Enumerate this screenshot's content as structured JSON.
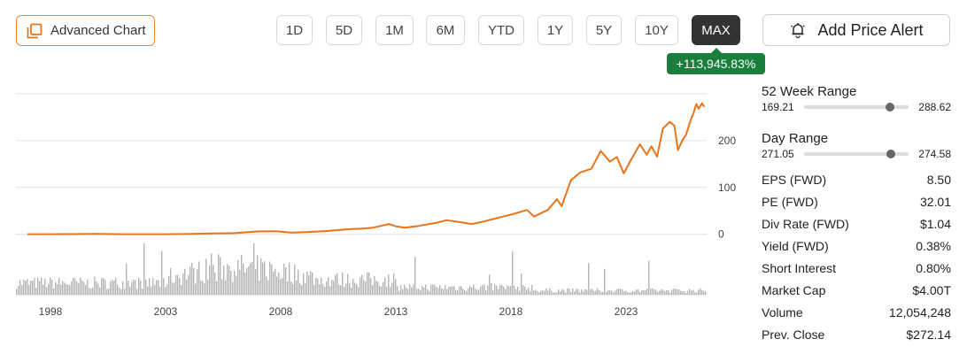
{
  "toolbar": {
    "advanced_chart_label": "Advanced Chart",
    "ranges": [
      "1D",
      "5D",
      "1M",
      "6M",
      "YTD",
      "1Y",
      "5Y",
      "10Y",
      "MAX"
    ],
    "active_range": "MAX",
    "add_price_alert_label": "Add Price Alert"
  },
  "change_badge": "+113,945.83%",
  "colors": {
    "accent_orange": "#e8751a",
    "badge_green": "#1a7f3c",
    "active_range_bg": "#333333",
    "volume_gray": "#b5b5b5",
    "grid": "#e0e0e0"
  },
  "stats": {
    "week52": {
      "title": "52 Week Range",
      "low": "169.21",
      "high": "288.62",
      "position": 0.82
    },
    "day": {
      "title": "Day Range",
      "low": "271.05",
      "high": "274.58",
      "position": 0.83
    },
    "rows": [
      {
        "label": "EPS (FWD)",
        "value": "8.50"
      },
      {
        "label": "PE (FWD)",
        "value": "32.01"
      },
      {
        "label": "Div Rate (FWD)",
        "value": "$1.04"
      },
      {
        "label": "Yield (FWD)",
        "value": "0.38%"
      },
      {
        "label": "Short Interest",
        "value": "0.80%"
      },
      {
        "label": "Market Cap",
        "value": "$4.00T"
      },
      {
        "label": "Volume",
        "value": "12,054,248"
      },
      {
        "label": "Prev. Close",
        "value": "$272.14"
      }
    ]
  },
  "chart_data": {
    "type": "line",
    "x_ticks": [
      "1998",
      "2003",
      "2008",
      "2013",
      "2018",
      "2023"
    ],
    "y_ticks": [
      "0",
      "100",
      "200"
    ],
    "ylim": [
      -10,
      300
    ],
    "xlim": [
      1996.5,
      2026.5
    ],
    "grid": true,
    "series": [
      {
        "values": [
          [
            1997.0,
            0.24
          ],
          [
            1998.0,
            0.3
          ],
          [
            1999.0,
            0.4
          ],
          [
            2000.0,
            0.8
          ],
          [
            2001.0,
            0.3
          ],
          [
            2002.0,
            0.25
          ],
          [
            2003.0,
            0.3
          ],
          [
            2004.0,
            0.6
          ],
          [
            2005.0,
            1.8
          ],
          [
            2006.0,
            2.5
          ],
          [
            2007.0,
            6.0
          ],
          [
            2007.8,
            6.5
          ],
          [
            2008.5,
            3.5
          ],
          [
            2009.5,
            5.5
          ],
          [
            2010.0,
            7.0
          ],
          [
            2011.0,
            11.0
          ],
          [
            2011.5,
            12.0
          ],
          [
            2012.0,
            14.0
          ],
          [
            2012.7,
            22.0
          ],
          [
            2013.0,
            17.0
          ],
          [
            2013.4,
            14.0
          ],
          [
            2014.0,
            18.0
          ],
          [
            2014.8,
            25.0
          ],
          [
            2015.2,
            30.0
          ],
          [
            2015.8,
            26.0
          ],
          [
            2016.3,
            22.0
          ],
          [
            2016.8,
            27.0
          ],
          [
            2017.5,
            36.0
          ],
          [
            2018.0,
            42.0
          ],
          [
            2018.7,
            52.0
          ],
          [
            2019.0,
            38.0
          ],
          [
            2019.6,
            52.0
          ],
          [
            2020.0,
            75.0
          ],
          [
            2020.2,
            60.0
          ],
          [
            2020.6,
            115.0
          ],
          [
            2021.0,
            132.0
          ],
          [
            2021.5,
            140.0
          ],
          [
            2021.9,
            178.0
          ],
          [
            2022.3,
            155.0
          ],
          [
            2022.6,
            165.0
          ],
          [
            2022.9,
            130.0
          ],
          [
            2023.2,
            158.0
          ],
          [
            2023.6,
            192.0
          ],
          [
            2023.9,
            170.0
          ],
          [
            2024.1,
            188.0
          ],
          [
            2024.35,
            166.0
          ],
          [
            2024.6,
            226.0
          ],
          [
            2024.9,
            240.0
          ],
          [
            2025.1,
            232.0
          ],
          [
            2025.25,
            180.0
          ],
          [
            2025.45,
            201.0
          ],
          [
            2025.6,
            212.0
          ],
          [
            2025.8,
            243.0
          ],
          [
            2025.95,
            262.0
          ],
          [
            2026.05,
            278.0
          ],
          [
            2026.15,
            268.0
          ],
          [
            2026.3,
            280.0
          ],
          [
            2026.4,
            272.0
          ]
        ]
      }
    ]
  }
}
